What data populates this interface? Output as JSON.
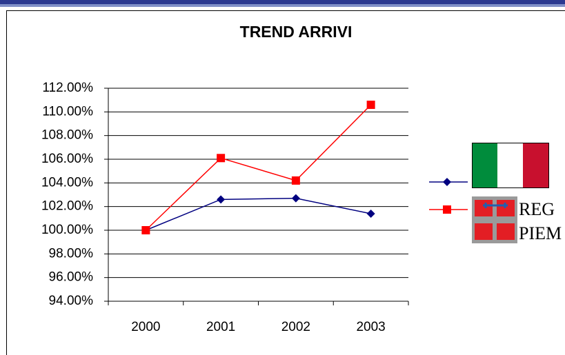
{
  "chart_data": {
    "type": "line",
    "title": "TREND ARRIVI",
    "categories": [
      "2000",
      "2001",
      "2002",
      "2003"
    ],
    "series": [
      {
        "color": "#000080",
        "marker": "diamond",
        "values": [
          100,
          102.6,
          102.7,
          101.4
        ]
      },
      {
        "color": "#ff0000",
        "marker": "square",
        "values": [
          100,
          106.1,
          104.2,
          110.6
        ]
      }
    ],
    "legend_logo_text": [
      "REG",
      "PIEM"
    ],
    "ylim": [
      94,
      112
    ],
    "yticks": [
      {
        "value": 94,
        "label": "94.00%"
      },
      {
        "value": 96,
        "label": "96.00%"
      },
      {
        "value": 98,
        "label": "98.00%"
      },
      {
        "value": 100,
        "label": "100.00%"
      },
      {
        "value": 102,
        "label": "102.00%"
      },
      {
        "value": 104,
        "label": "104.00%"
      },
      {
        "value": 106,
        "label": "106.00%"
      },
      {
        "value": 108,
        "label": "108.00%"
      },
      {
        "value": 110,
        "label": "110.00%"
      },
      {
        "value": 112,
        "label": "112.00%"
      }
    ],
    "grid": true
  }
}
